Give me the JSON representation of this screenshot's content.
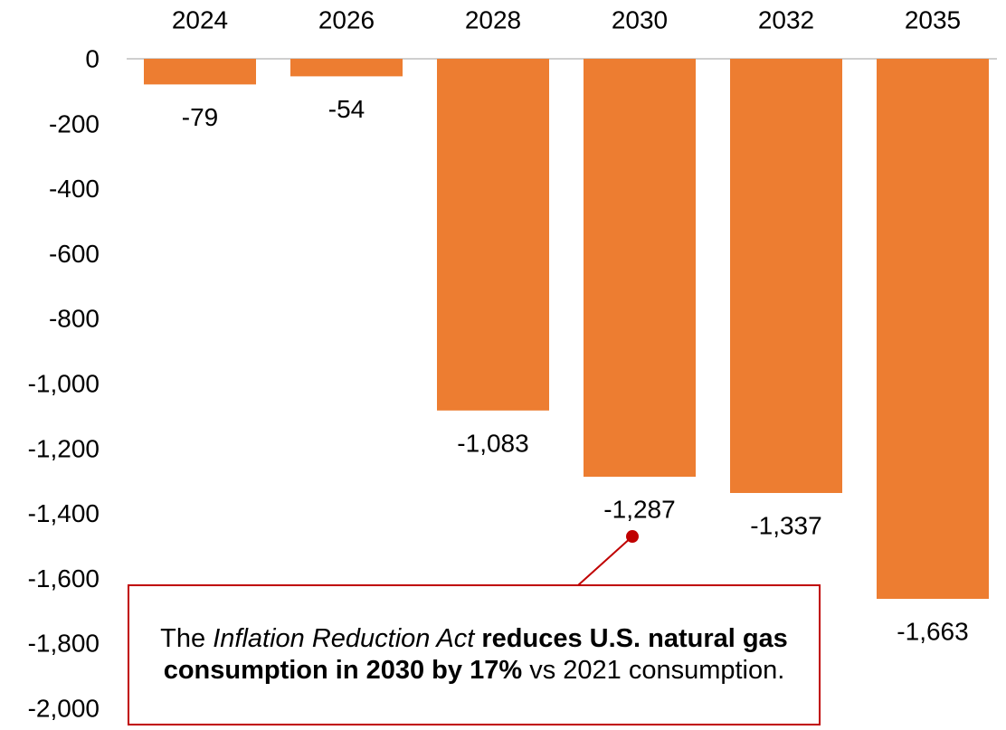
{
  "chart_data": {
    "type": "bar",
    "categories": [
      "2024",
      "2026",
      "2028",
      "2030",
      "2032",
      "2035"
    ],
    "values": [
      -79,
      -54,
      -1083,
      -1287,
      -1337,
      -1663
    ],
    "value_labels": [
      "-79",
      "-54",
      "-1,083",
      "-1,287",
      "-1,337",
      "-1,663"
    ],
    "ylim": [
      -2000,
      0
    ],
    "yticks": [
      0,
      -200,
      -400,
      -600,
      -800,
      -1000,
      -1200,
      -1400,
      -1600,
      -1800,
      -2000
    ],
    "ytick_labels": [
      "0",
      "-200",
      "-400",
      "-600",
      "-800",
      "-1,000",
      "-1,200",
      "-1,400",
      "-1,600",
      "-1,800",
      "-2,000"
    ],
    "category_axis_position": "top",
    "grid": false,
    "bar_color": "#ed7d31",
    "annotation": {
      "target_category": "2030",
      "color": "#c00000",
      "text_plain_1": "The ",
      "text_italic": "Inflation Reduction Act",
      "text_plain_2": " ",
      "text_bold": "reduces U.S. natural gas consumption in 2030 by 17%",
      "text_plain_3": " vs 2021 consumption."
    }
  }
}
